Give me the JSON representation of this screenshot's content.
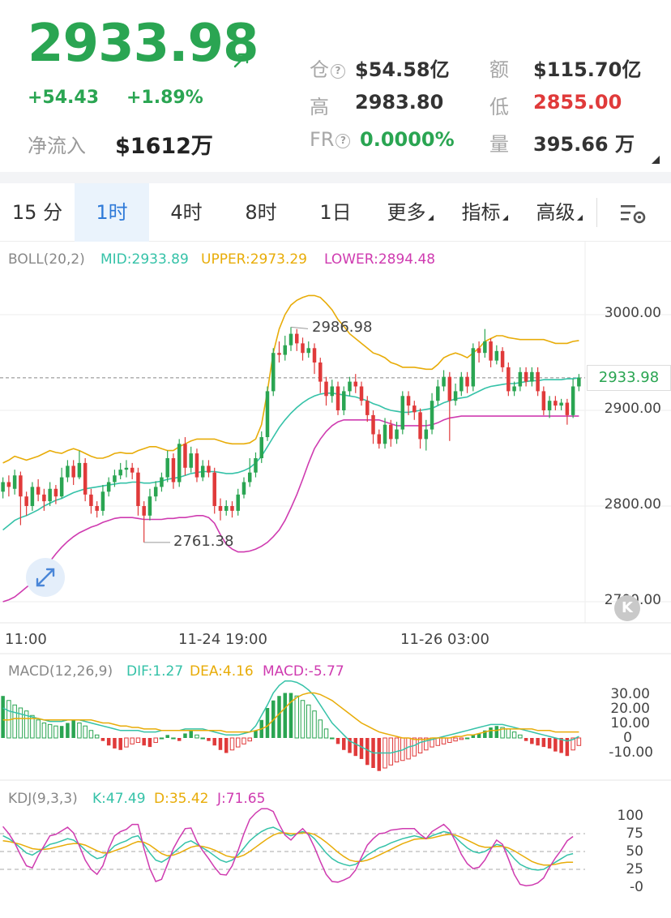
{
  "header": {
    "price": "2933.98",
    "change": "+54.43",
    "change_pct": "+1.89%",
    "netflow_label": "净流入",
    "netflow_value": "$1612万",
    "position_label": "仓",
    "position_value": "$54.58亿",
    "turnover_label": "额",
    "turnover_value": "$115.70亿",
    "high_label": "高",
    "high_value": "2983.80",
    "low_label": "低",
    "low_value": "2855.00",
    "fr_label": "FR",
    "fr_value": "0.0000%",
    "volume_label": "量",
    "volume_value": "395.66 万"
  },
  "tabs": {
    "t15m": "15 分",
    "t1h": "1时",
    "t4h": "4时",
    "t8h": "8时",
    "t1d": "1日",
    "more": "更多",
    "indicators": "指标",
    "advanced": "高级"
  },
  "boll": {
    "title": "BOLL(20,2)",
    "mid": "MID:2933.89",
    "upper": "UPPER:2973.29",
    "lower": "LOWER:2894.48"
  },
  "main_axis": [
    "3000.00",
    "2900.00",
    "2800.00",
    "2700.00"
  ],
  "current_price_tag": "2933.98",
  "annotations": {
    "max": "2986.98",
    "min": "2761.38"
  },
  "time_axis": [
    "11:00",
    "11-24 19:00",
    "11-26 03:00"
  ],
  "macd": {
    "title": "MACD(12,26,9)",
    "dif": "DIF:1.27",
    "dea": "DEA:4.16",
    "macd": "MACD:-5.77",
    "axis": [
      "30.00",
      "20.00",
      "10.00",
      "0",
      "-10.00"
    ]
  },
  "kdj": {
    "title": "KDJ(9,3,3)",
    "k": "K:47.49",
    "d": "D:35.42",
    "j": "J:71.65",
    "axis": [
      "100",
      "75",
      "50",
      "25",
      "-0"
    ]
  },
  "colors": {
    "up": "#2aa552",
    "down": "#e03a3a",
    "mid": "#35c2a8",
    "upper": "#e8ac08",
    "lower": "#cf3bb0",
    "accent": "#2f7ad8"
  },
  "chart_data": {
    "type": "candlestick",
    "price_range": [
      2690,
      3030
    ],
    "candles": [
      [
        2815,
        2825,
        2830,
        2808
      ],
      [
        2825,
        2820,
        2832,
        2810
      ],
      [
        2818,
        2832,
        2838,
        2812
      ],
      [
        2832,
        2810,
        2836,
        2780
      ],
      [
        2810,
        2800,
        2815,
        2790
      ],
      [
        2800,
        2820,
        2825,
        2795
      ],
      [
        2820,
        2812,
        2828,
        2805
      ],
      [
        2812,
        2805,
        2818,
        2795
      ],
      [
        2805,
        2818,
        2825,
        2800
      ],
      [
        2818,
        2810,
        2822,
        2802
      ],
      [
        2810,
        2830,
        2840,
        2808
      ],
      [
        2830,
        2842,
        2848,
        2825
      ],
      [
        2842,
        2830,
        2848,
        2822
      ],
      [
        2830,
        2845,
        2858,
        2828
      ],
      [
        2845,
        2812,
        2850,
        2805
      ],
      [
        2812,
        2800,
        2818,
        2792
      ],
      [
        2800,
        2795,
        2805,
        2788
      ],
      [
        2795,
        2815,
        2822,
        2790
      ],
      [
        2815,
        2825,
        2830,
        2810
      ],
      [
        2825,
        2832,
        2838,
        2820
      ],
      [
        2832,
        2838,
        2845,
        2828
      ],
      [
        2838,
        2840,
        2848,
        2830
      ],
      [
        2840,
        2835,
        2845,
        2828
      ],
      [
        2835,
        2800,
        2840,
        2790
      ],
      [
        2800,
        2790,
        2805,
        2762
      ],
      [
        2790,
        2810,
        2818,
        2785
      ],
      [
        2810,
        2820,
        2826,
        2805
      ],
      [
        2820,
        2830,
        2835,
        2815
      ],
      [
        2830,
        2850,
        2858,
        2825
      ],
      [
        2850,
        2825,
        2855,
        2818
      ],
      [
        2825,
        2865,
        2870,
        2820
      ],
      [
        2865,
        2840,
        2872,
        2832
      ],
      [
        2840,
        2855,
        2862,
        2835
      ],
      [
        2855,
        2830,
        2860,
        2825
      ],
      [
        2830,
        2842,
        2848,
        2826
      ],
      [
        2842,
        2835,
        2848,
        2830
      ],
      [
        2835,
        2800,
        2840,
        2792
      ],
      [
        2800,
        2795,
        2808,
        2785
      ],
      [
        2795,
        2800,
        2806,
        2790
      ],
      [
        2800,
        2795,
        2805,
        2788
      ],
      [
        2795,
        2812,
        2818,
        2790
      ],
      [
        2812,
        2825,
        2830,
        2808
      ],
      [
        2825,
        2835,
        2850,
        2820
      ],
      [
        2835,
        2850,
        2856,
        2830
      ],
      [
        2850,
        2872,
        2878,
        2845
      ],
      [
        2872,
        2920,
        2925,
        2868
      ],
      [
        2920,
        2960,
        2965,
        2915
      ],
      [
        2960,
        2958,
        2972,
        2950
      ],
      [
        2958,
        2968,
        2978,
        2952
      ],
      [
        2968,
        2980,
        2987,
        2962
      ],
      [
        2980,
        2970,
        2985,
        2962
      ],
      [
        2970,
        2960,
        2976,
        2952
      ],
      [
        2960,
        2965,
        2972,
        2955
      ],
      [
        2965,
        2950,
        2970,
        2938
      ],
      [
        2950,
        2930,
        2955,
        2918
      ],
      [
        2930,
        2915,
        2935,
        2905
      ],
      [
        2915,
        2925,
        2932,
        2908
      ],
      [
        2925,
        2900,
        2930,
        2895
      ],
      [
        2900,
        2920,
        2925,
        2895
      ],
      [
        2920,
        2930,
        2935,
        2915
      ],
      [
        2930,
        2925,
        2938,
        2918
      ],
      [
        2925,
        2910,
        2930,
        2905
      ],
      [
        2910,
        2895,
        2915,
        2888
      ],
      [
        2895,
        2875,
        2900,
        2865
      ],
      [
        2875,
        2865,
        2880,
        2860
      ],
      [
        2865,
        2885,
        2892,
        2860
      ],
      [
        2885,
        2870,
        2890,
        2862
      ],
      [
        2870,
        2880,
        2888,
        2865
      ],
      [
        2880,
        2915,
        2920,
        2875
      ],
      [
        2915,
        2905,
        2920,
        2895
      ],
      [
        2905,
        2898,
        2910,
        2890
      ],
      [
        2898,
        2870,
        2902,
        2860
      ],
      [
        2870,
        2880,
        2890,
        2858
      ],
      [
        2880,
        2910,
        2918,
        2875
      ],
      [
        2910,
        2925,
        2932,
        2905
      ],
      [
        2925,
        2935,
        2942,
        2920
      ],
      [
        2935,
        2910,
        2940,
        2868
      ],
      [
        2910,
        2920,
        2928,
        2905
      ],
      [
        2920,
        2935,
        2940,
        2915
      ],
      [
        2935,
        2925,
        2940,
        2918
      ],
      [
        2925,
        2965,
        2970,
        2920
      ],
      [
        2965,
        2960,
        2972,
        2950
      ],
      [
        2960,
        2972,
        2985,
        2955
      ],
      [
        2972,
        2952,
        2975,
        2945
      ],
      [
        2952,
        2962,
        2968,
        2948
      ],
      [
        2962,
        2945,
        2966,
        2940
      ],
      [
        2945,
        2920,
        2950,
        2915
      ],
      [
        2920,
        2925,
        2930,
        2915
      ],
      [
        2925,
        2940,
        2945,
        2920
      ],
      [
        2940,
        2930,
        2945,
        2925
      ],
      [
        2930,
        2940,
        2945,
        2925
      ],
      [
        2940,
        2920,
        2945,
        2915
      ],
      [
        2920,
        2900,
        2925,
        2895
      ],
      [
        2900,
        2910,
        2915,
        2892
      ],
      [
        2910,
        2905,
        2915,
        2900
      ],
      [
        2905,
        2908,
        2912,
        2900
      ],
      [
        2908,
        2895,
        2912,
        2885
      ],
      [
        2895,
        2925,
        2933,
        2892
      ],
      [
        2925,
        2934,
        2938,
        2920
      ]
    ],
    "upper": [
      2845,
      2848,
      2852,
      2850,
      2848,
      2850,
      2852,
      2855,
      2858,
      2856,
      2855,
      2858,
      2860,
      2858,
      2855,
      2852,
      2850,
      2850,
      2852,
      2855,
      2856,
      2855,
      2855,
      2858,
      2860,
      2862,
      2862,
      2860,
      2858,
      2858,
      2862,
      2865,
      2868,
      2870,
      2870,
      2870,
      2870,
      2868,
      2866,
      2865,
      2865,
      2865,
      2866,
      2870,
      2885,
      2920,
      2960,
      2985,
      3000,
      3010,
      3015,
      3018,
      3020,
      3020,
      3018,
      3012,
      3005,
      2995,
      2988,
      2980,
      2975,
      2970,
      2965,
      2960,
      2958,
      2955,
      2950,
      2948,
      2945,
      2945,
      2945,
      2944,
      2943,
      2943,
      2948,
      2955,
      2958,
      2960,
      2958,
      2955,
      2960,
      2965,
      2972,
      2975,
      2978,
      2978,
      2976,
      2975,
      2974,
      2974,
      2974,
      2974,
      2974,
      2972,
      2970,
      2970,
      2970,
      2972,
      2973
    ],
    "mid": [
      2775,
      2780,
      2785,
      2788,
      2790,
      2793,
      2796,
      2800,
      2803,
      2806,
      2808,
      2811,
      2814,
      2816,
      2818,
      2819,
      2820,
      2821,
      2822,
      2823,
      2824,
      2824,
      2825,
      2825,
      2824,
      2824,
      2825,
      2826,
      2828,
      2829,
      2830,
      2832,
      2834,
      2835,
      2836,
      2836,
      2836,
      2835,
      2834,
      2834,
      2835,
      2837,
      2840,
      2845,
      2852,
      2862,
      2872,
      2882,
      2890,
      2897,
      2903,
      2908,
      2912,
      2915,
      2917,
      2918,
      2918,
      2917,
      2916,
      2915,
      2914,
      2912,
      2910,
      2907,
      2905,
      2902,
      2900,
      2899,
      2898,
      2898,
      2899,
      2900,
      2901,
      2902,
      2905,
      2908,
      2910,
      2912,
      2913,
      2914,
      2917,
      2920,
      2923,
      2925,
      2926,
      2927,
      2928,
      2928,
      2929,
      2930,
      2931,
      2931,
      2932,
      2932,
      2932,
      2932,
      2933,
      2933,
      2934
    ],
    "lower": [
      2700,
      2702,
      2705,
      2710,
      2715,
      2720,
      2728,
      2735,
      2742,
      2750,
      2757,
      2763,
      2768,
      2772,
      2775,
      2778,
      2780,
      2783,
      2785,
      2787,
      2788,
      2788,
      2788,
      2787,
      2786,
      2786,
      2786,
      2786,
      2787,
      2787,
      2788,
      2788,
      2789,
      2790,
      2790,
      2788,
      2782,
      2770,
      2760,
      2755,
      2752,
      2752,
      2753,
      2755,
      2758,
      2762,
      2768,
      2775,
      2785,
      2798,
      2812,
      2828,
      2845,
      2860,
      2870,
      2878,
      2884,
      2888,
      2890,
      2890,
      2890,
      2890,
      2890,
      2890,
      2890,
      2888,
      2886,
      2884,
      2884,
      2884,
      2884,
      2884,
      2884,
      2885,
      2887,
      2890,
      2892,
      2893,
      2894,
      2894,
      2894,
      2894,
      2894,
      2894,
      2894,
      2894,
      2894,
      2894,
      2894,
      2894,
      2894,
      2894,
      2894,
      2894,
      2894,
      2894,
      2894,
      2894,
      2894
    ],
    "current_price": 2933.98,
    "macd_hist": [
      28,
      25,
      22,
      20,
      18,
      15,
      12,
      10,
      9,
      8,
      8,
      10,
      12,
      10,
      8,
      5,
      2,
      -2,
      -5,
      -7,
      -8,
      -6,
      -4,
      -3,
      -5,
      -6,
      -3,
      0,
      2,
      0,
      -2,
      3,
      5,
      2,
      0,
      -2,
      -5,
      -8,
      -10,
      -8,
      -6,
      -4,
      -2,
      5,
      12,
      20,
      25,
      28,
      30,
      30,
      28,
      25,
      22,
      18,
      12,
      6,
      0,
      -4,
      -8,
      -10,
      -12,
      -14,
      -18,
      -20,
      -22,
      -20,
      -18,
      -16,
      -15,
      -14,
      -12,
      -10,
      -8,
      -6,
      -5,
      -4,
      -3,
      -2,
      -1,
      0,
      2,
      3,
      5,
      7,
      8,
      7,
      6,
      4,
      2,
      -2,
      -4,
      -5,
      -6,
      -7,
      -9,
      -10,
      -12,
      -8,
      -5
    ],
    "macd_dif": [
      20,
      18,
      17,
      16,
      15,
      14,
      13,
      12,
      11,
      11,
      11,
      12,
      12,
      12,
      11,
      10,
      9,
      8,
      7,
      6,
      5,
      5,
      5,
      5,
      4,
      4,
      4,
      5,
      5,
      5,
      5,
      6,
      6,
      6,
      6,
      5,
      4,
      3,
      2,
      2,
      2,
      3,
      4,
      8,
      15,
      22,
      30,
      35,
      38,
      38,
      37,
      35,
      32,
      28,
      22,
      16,
      10,
      6,
      2,
      -2,
      -4,
      -6,
      -8,
      -10,
      -10,
      -10,
      -10,
      -9,
      -8,
      -6,
      -5,
      -3,
      -2,
      -1,
      0,
      1,
      2,
      3,
      4,
      5,
      6,
      7,
      8,
      9,
      9,
      9,
      8,
      7,
      6,
      5,
      4,
      3,
      2,
      1,
      0,
      -1,
      -2,
      -1,
      1
    ],
    "macd_dea": [
      12,
      12,
      13,
      13,
      13,
      13,
      13,
      12,
      12,
      12,
      12,
      12,
      12,
      12,
      12,
      12,
      11,
      10,
      10,
      9,
      8,
      8,
      7,
      7,
      6,
      6,
      6,
      5,
      5,
      5,
      5,
      5,
      5,
      5,
      5,
      5,
      5,
      5,
      4,
      4,
      4,
      4,
      4,
      5,
      6,
      8,
      12,
      16,
      20,
      24,
      27,
      29,
      30,
      30,
      29,
      27,
      25,
      22,
      19,
      16,
      13,
      10,
      8,
      6,
      4,
      3,
      2,
      1,
      0,
      0,
      -1,
      -1,
      -1,
      0,
      0,
      0,
      0,
      1,
      1,
      2,
      2,
      3,
      4,
      5,
      5,
      6,
      6,
      6,
      6,
      6,
      6,
      5,
      5,
      5,
      4,
      4,
      4,
      4,
      4
    ],
    "kdj_k": [
      72,
      68,
      62,
      55,
      48,
      45,
      50,
      55,
      60,
      62,
      65,
      68,
      66,
      60,
      52,
      45,
      40,
      42,
      50,
      58,
      62,
      65,
      70,
      72,
      60,
      48,
      38,
      35,
      40,
      48,
      55,
      62,
      65,
      60,
      55,
      50,
      44,
      38,
      35,
      38,
      45,
      55,
      65,
      72,
      78,
      82,
      84,
      80,
      75,
      72,
      75,
      78,
      75,
      68,
      58,
      48,
      40,
      35,
      32,
      30,
      32,
      38,
      45,
      50,
      55,
      58,
      62,
      65,
      68,
      70,
      72,
      70,
      68,
      72,
      75,
      78,
      76,
      70,
      62,
      55,
      50,
      48,
      50,
      55,
      60,
      58,
      50,
      40,
      32,
      28,
      25,
      24,
      25,
      30,
      35,
      40,
      45,
      47
    ],
    "kdj_d": [
      65,
      64,
      62,
      60,
      57,
      54,
      53,
      53,
      54,
      56,
      58,
      60,
      61,
      61,
      59,
      55,
      51,
      48,
      48,
      51,
      54,
      57,
      61,
      64,
      63,
      59,
      53,
      47,
      44,
      45,
      48,
      52,
      56,
      58,
      57,
      55,
      52,
      48,
      44,
      42,
      42,
      45,
      50,
      56,
      62,
      68,
      73,
      76,
      76,
      75,
      75,
      76,
      76,
      74,
      69,
      63,
      56,
      49,
      43,
      38,
      36,
      36,
      38,
      41,
      45,
      49,
      53,
      57,
      61,
      64,
      67,
      68,
      68,
      69,
      71,
      73,
      74,
      73,
      70,
      66,
      62,
      58,
      56,
      56,
      57,
      57,
      55,
      51,
      46,
      41,
      36,
      33,
      31,
      31,
      32,
      34,
      35,
      35
    ],
    "kdj_j": [
      85,
      75,
      62,
      45,
      30,
      27,
      44,
      58,
      72,
      74,
      79,
      84,
      76,
      58,
      38,
      25,
      18,
      30,
      54,
      72,
      78,
      81,
      88,
      88,
      54,
      26,
      8,
      11,
      32,
      54,
      69,
      82,
      83,
      64,
      51,
      40,
      28,
      18,
      17,
      30,
      51,
      75,
      95,
      104,
      110,
      110,
      106,
      88,
      73,
      66,
      75,
      82,
      73,
      56,
      36,
      18,
      8,
      7,
      10,
      14,
      24,
      42,
      59,
      68,
      75,
      76,
      80,
      81,
      82,
      82,
      82,
      74,
      68,
      78,
      83,
      88,
      80,
      64,
      46,
      33,
      26,
      28,
      38,
      53,
      66,
      60,
      40,
      18,
      4,
      2,
      3,
      6,
      13,
      28,
      41,
      52,
      65,
      71
    ]
  }
}
